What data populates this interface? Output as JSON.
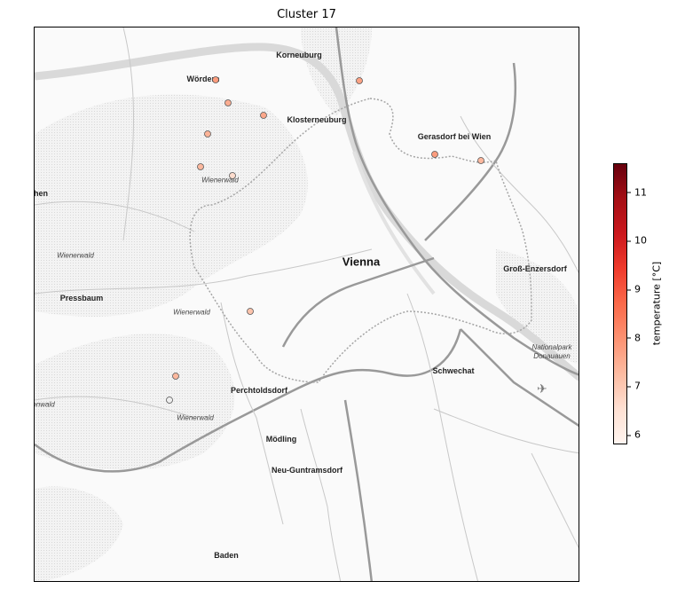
{
  "figure": {
    "title": "Cluster 17"
  },
  "map": {
    "towns": [
      {
        "id": "korneuburg",
        "label": "Korneuburg"
      },
      {
        "id": "wordern",
        "label": "Wördern"
      },
      {
        "id": "klosterneuburg",
        "label": "Klosterneuburg"
      },
      {
        "id": "gerasdorf",
        "label": "Gerasdorf bei Wien"
      },
      {
        "id": "vienna",
        "label": "Vienna"
      },
      {
        "id": "gross-enzersdorf",
        "label": "Groß-Enzersdorf"
      },
      {
        "id": "pressbaum",
        "label": "Pressbaum"
      },
      {
        "id": "schwechat",
        "label": "Schwechat"
      },
      {
        "id": "perchtoldsdorf",
        "label": "Perchtoldsdorf"
      },
      {
        "id": "modling",
        "label": "Mödling"
      },
      {
        "id": "neu-guntramsdorf",
        "label": "Neu-Guntramsdorf"
      },
      {
        "id": "baden",
        "label": "Baden"
      },
      {
        "id": "west-edge",
        "label": "hen"
      }
    ],
    "areas": [
      {
        "id": "wienerwald-1",
        "label": "Wienerwald"
      },
      {
        "id": "wienerwald-2",
        "label": "Wienerwald"
      },
      {
        "id": "wienerwald-3",
        "label": "Wienerwald"
      },
      {
        "id": "wienerwald-4",
        "label": "Wienerwald"
      },
      {
        "id": "nationalpark",
        "label": "Nationalpark\nDonauauen"
      },
      {
        "id": "west-edge-2",
        "label": "enwald"
      }
    ]
  },
  "stations_temperature_c": [
    7.8,
    7.5,
    7.6,
    7.4,
    7.3,
    6.6,
    7.7,
    7.8,
    7.3,
    7.1,
    7.3
  ],
  "colorbar": {
    "label": "temperature [°C]",
    "min": 5.8,
    "max": 11.6,
    "ticks": [
      "6",
      "7",
      "8",
      "9",
      "10",
      "11"
    ],
    "tick_values": [
      6,
      7,
      8,
      9,
      10,
      11
    ],
    "cmap": [
      "#fff5f0",
      "#fee0d2",
      "#fcbba1",
      "#fc9272",
      "#fb6a4a",
      "#ef3b2c",
      "#cb181d",
      "#a50f15",
      "#67000d"
    ]
  }
}
